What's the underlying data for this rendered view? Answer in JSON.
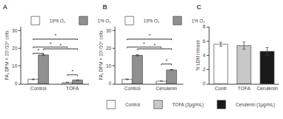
{
  "chart_data": [
    {
      "type": "bar",
      "title": "A",
      "categories": [
        "Control",
        "TOFA"
      ],
      "series": [
        {
          "name": "19% O₂",
          "color": "#ffffff",
          "values": [
            2.5,
            0.7
          ],
          "errors": [
            0.2,
            0.08
          ]
        },
        {
          "name": "1% O₂",
          "color": "#909090",
          "values": [
            16.2,
            2.1
          ],
          "errors": [
            0.35,
            0.15
          ]
        }
      ],
      "ylabel": "FA, DPM × 10⁵/10⁶ cells",
      "ylim": [
        0,
        32
      ],
      "yticks": [
        0,
        10,
        20,
        30
      ],
      "grid": false,
      "legend": "top left",
      "annotations": [
        {
          "text": "*",
          "y": 16.5,
          "from": [
            "Control",
            "19% O₂"
          ],
          "to": [
            "Control",
            "1% O₂"
          ]
        },
        {
          "text": "*",
          "y": 24.5,
          "from": [
            "Control",
            "19% O₂"
          ],
          "to": [
            "TOFA",
            "1% O₂"
          ]
        },
        {
          "text": "*",
          "y": 20.0,
          "from": [
            "Control",
            "19% O₂"
          ],
          "to": [
            "TOFA",
            "19% O₂"
          ]
        },
        {
          "text": "*",
          "y": 19.0,
          "from": [
            "Control",
            "1% O₂"
          ],
          "to": [
            "TOFA",
            "1% O₂"
          ]
        },
        {
          "text": "*",
          "y": 4.5,
          "from": [
            "TOFA",
            "19% O₂"
          ],
          "to": [
            "TOFA",
            "1% O₂"
          ]
        }
      ]
    },
    {
      "type": "bar",
      "title": "B",
      "categories": [
        "Control",
        "Cerulenin"
      ],
      "series": [
        {
          "name": "19% O₂",
          "color": "#ffffff",
          "values": [
            2.5,
            1.5
          ],
          "errors": [
            0.2,
            0.1
          ]
        },
        {
          "name": "1% O₂",
          "color": "#909090",
          "values": [
            16.0,
            7.8
          ],
          "errors": [
            0.35,
            0.3
          ]
        }
      ],
      "ylabel": "FA, DPM × 10⁵/10⁶ cells",
      "ylim": [
        0,
        32
      ],
      "yticks": [
        0,
        10,
        20,
        30
      ],
      "grid": false,
      "legend": "top left",
      "annotations": [
        {
          "text": "*",
          "y": 24.5,
          "from": [
            "Control",
            "19% O₂"
          ],
          "to": [
            "Cerulenin",
            "1% O₂"
          ]
        },
        {
          "text": "*",
          "y": 20.0,
          "from": [
            "Control",
            "19% O₂"
          ],
          "to": [
            "Cerulenin",
            "19% O₂"
          ]
        },
        {
          "text": "*",
          "y": 19.0,
          "from": [
            "Control",
            "1% O₂"
          ],
          "to": [
            "Cerulenin",
            "1% O₂"
          ]
        },
        {
          "text": "*",
          "y": 10.5,
          "from": [
            "Cerulenin",
            "19% O₂"
          ],
          "to": [
            "Cerulenin",
            "1% O₂"
          ]
        }
      ]
    },
    {
      "type": "bar",
      "title": "C",
      "categories": [
        "Contr",
        "TOFA",
        "Cerulenin"
      ],
      "series": [
        {
          "name": "Control",
          "color": "#ffffff",
          "values": [
            5.55,
            null,
            null
          ],
          "errors": [
            0.28,
            null,
            null
          ]
        },
        {
          "name": "TOFA (2μg/mL)",
          "color": "#c8c8c8",
          "values": [
            null,
            5.35,
            null
          ],
          "errors": [
            null,
            0.5,
            null
          ]
        },
        {
          "name": "Cerulenin (1μg/mL)",
          "color": "#1a1a1a",
          "values": [
            null,
            null,
            4.55
          ],
          "errors": [
            null,
            null,
            0.55
          ]
        }
      ],
      "ylabel": "% LDH release",
      "ylim": [
        0,
        8
      ],
      "yticks": [
        0,
        2,
        4,
        6,
        8
      ],
      "grid": false,
      "legend": "bottom right"
    }
  ]
}
